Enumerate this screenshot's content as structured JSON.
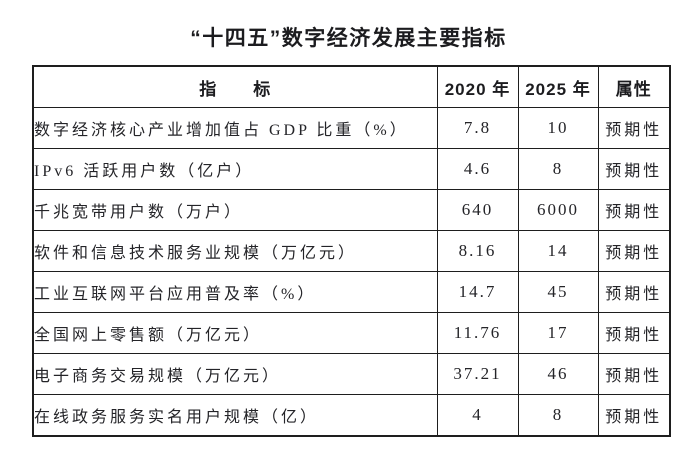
{
  "title": "“十四五”数字经济发展主要指标",
  "table": {
    "headers": {
      "indicator": "指　　标",
      "y2020": "2020 年",
      "y2025": "2025 年",
      "attribute": "属性"
    },
    "rows": [
      {
        "indicator": "数字经济核心产业增加值占 GDP 比重（%）",
        "y2020": "7.8",
        "y2025": "10",
        "attribute": "预期性"
      },
      {
        "indicator": "IPv6 活跃用户数（亿户）",
        "y2020": "4.6",
        "y2025": "8",
        "attribute": "预期性"
      },
      {
        "indicator": "千兆宽带用户数（万户）",
        "y2020": "640",
        "y2025": "6000",
        "attribute": "预期性"
      },
      {
        "indicator": "软件和信息技术服务业规模（万亿元）",
        "y2020": "8.16",
        "y2025": "14",
        "attribute": "预期性"
      },
      {
        "indicator": "工业互联网平台应用普及率（%）",
        "y2020": "14.7",
        "y2025": "45",
        "attribute": "预期性"
      },
      {
        "indicator": "全国网上零售额（万亿元）",
        "y2020": "11.76",
        "y2025": "17",
        "attribute": "预期性"
      },
      {
        "indicator": "电子商务交易规模（万亿元）",
        "y2020": "37.21",
        "y2025": "46",
        "attribute": "预期性"
      },
      {
        "indicator": "在线政务服务实名用户规模（亿）",
        "y2020": "4",
        "y2025": "8",
        "attribute": "预期性"
      }
    ]
  },
  "colors": {
    "text": "#242428",
    "border": "#1e1e1e",
    "background": "#ffffff"
  }
}
